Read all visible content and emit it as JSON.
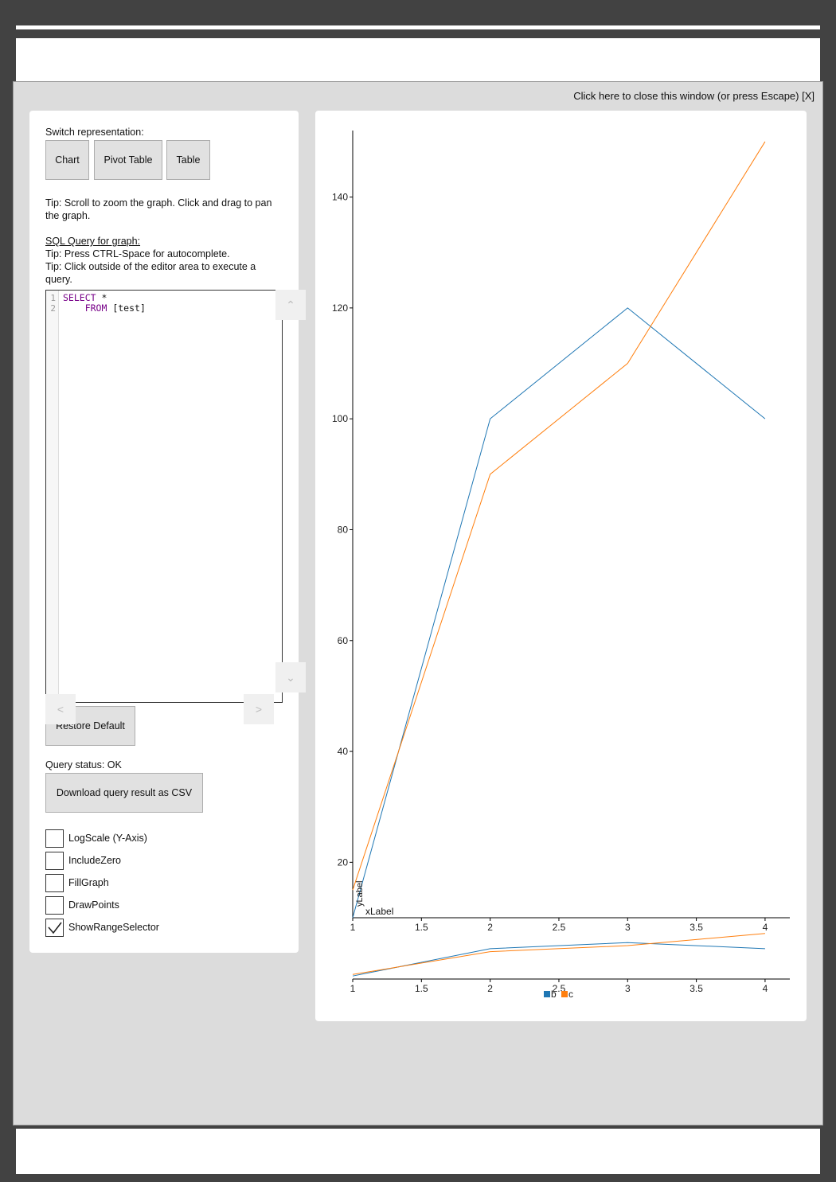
{
  "window": {
    "close_text": "Click here to close this window (or press Escape) [X]"
  },
  "left": {
    "switch_label": "Switch representation:",
    "buttons": {
      "chart": "Chart",
      "pivot": "Pivot Table",
      "table": "Table"
    },
    "tip_zoom": "Tip: Scroll to zoom the graph. Click and drag to pan the graph.",
    "sql_heading": "SQL Query for graph:",
    "tip_autocomplete": "Tip: Press CTRL-Space for autocomplete.",
    "tip_execute": "Tip: Click outside of the editor area to execute a query.",
    "editor": {
      "line_numbers": [
        "1",
        "2"
      ],
      "kw_select": "SELECT",
      "line1_rest": " *",
      "kw_from": "FROM",
      "line2_rest": " [test]"
    },
    "restore_button": "Restore Default",
    "query_status": "Query status: OK",
    "download_button": "Download query result as CSV",
    "checkboxes": [
      {
        "label": "LogScale (Y-Axis)",
        "checked": false
      },
      {
        "label": "IncludeZero",
        "checked": false
      },
      {
        "label": "FillGraph",
        "checked": false
      },
      {
        "label": "DrawPoints",
        "checked": false
      },
      {
        "label": "ShowRangeSelector",
        "checked": true
      }
    ]
  },
  "chart_data": {
    "type": "line",
    "x": [
      1,
      2,
      3,
      4
    ],
    "series": [
      {
        "name": "b",
        "values": [
          10,
          100,
          120,
          100
        ],
        "color": "#1f77b4"
      },
      {
        "name": "c",
        "values": [
          15,
          90,
          110,
          150
        ],
        "color": "#ff7f0e"
      }
    ],
    "xlabel": "xLabel",
    "ylabel": "yLabel",
    "xlim": [
      1,
      4.18
    ],
    "ylim": [
      10,
      152
    ],
    "x_ticks": [
      "1",
      "1.5",
      "2",
      "2.5",
      "3",
      "3.5",
      "4"
    ],
    "y_ticks": [
      "20",
      "40",
      "60",
      "80",
      "100",
      "120",
      "140"
    ],
    "range_selector": true,
    "legend": "bottom-center",
    "grid": false
  }
}
